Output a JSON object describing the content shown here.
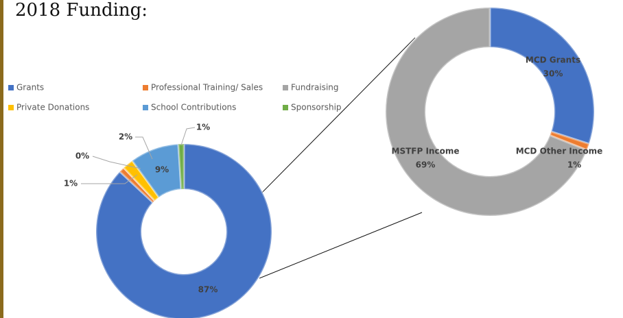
{
  "chart_data": [
    {
      "type": "donut",
      "title": "2018 Funding:",
      "categories": [
        "Grants",
        "Professional Training/ Sales",
        "Fundraising",
        "Private Donations",
        "School Contributions",
        "Sponsorship"
      ],
      "values": [
        87,
        1,
        0,
        2,
        9,
        1
      ],
      "value_labels": [
        "87%",
        "1%",
        "0%",
        "2%",
        "9%",
        "1%"
      ],
      "colors": [
        "#4472c4",
        "#ed7d31",
        "#a5a5a5",
        "#ffc000",
        "#5b9bd5",
        "#70ad47"
      ],
      "legend": "top"
    },
    {
      "type": "donut",
      "categories": [
        "MCD Grants",
        "MCD Other Income",
        "MSTFP Income"
      ],
      "values": [
        30,
        1,
        69
      ],
      "value_labels": [
        "30%",
        "1%",
        "69%"
      ],
      "colors": [
        "#4472c4",
        "#ed7d31",
        "#a5a5a5"
      ]
    }
  ]
}
